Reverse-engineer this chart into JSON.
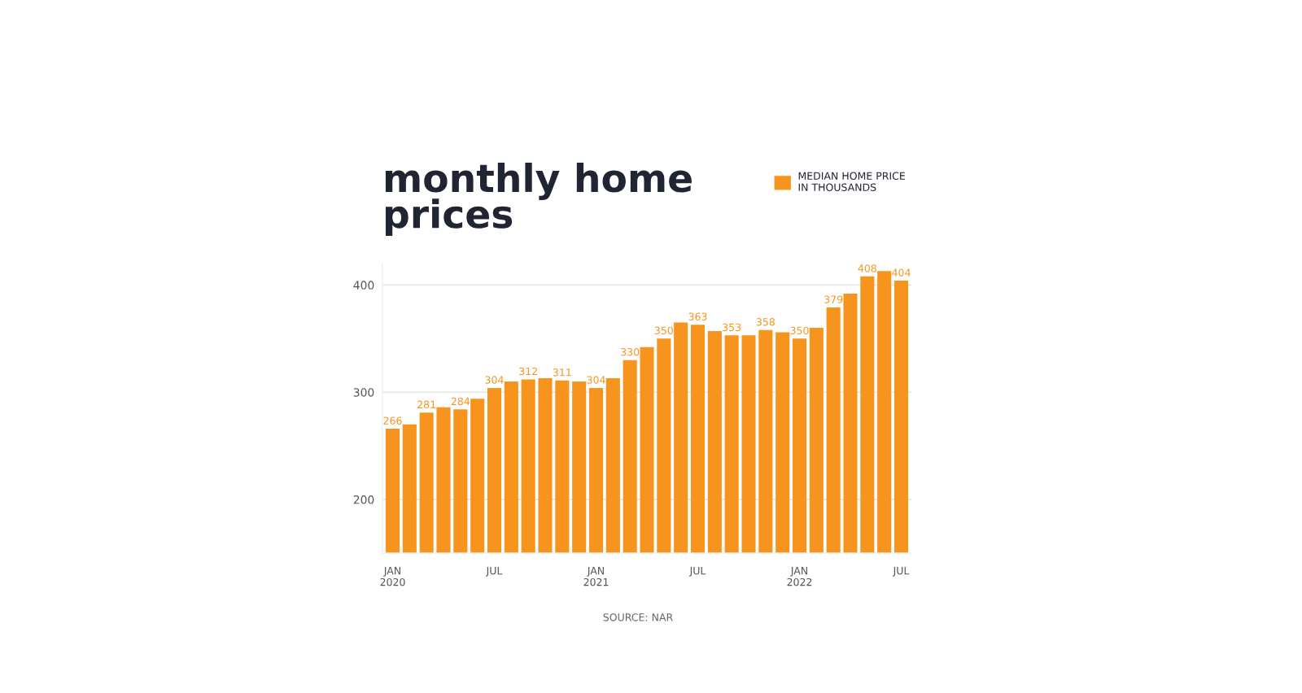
{
  "chart_data": {
    "type": "bar",
    "title": "monthly home\nprices",
    "categories": [
      "JAN\n2020",
      null,
      null,
      null,
      null,
      null,
      "JUL",
      null,
      null,
      null,
      null,
      null,
      "JAN\n2021",
      null,
      null,
      null,
      null,
      null,
      "JUL",
      null,
      null,
      null,
      null,
      null,
      "JAN\n2022",
      null,
      null,
      null,
      null,
      null,
      "JUL"
    ],
    "series": [
      {
        "name": "MEDIAN HOME PRICE\nIN THOUSANDS",
        "color": "#f7941d",
        "values": [
          266,
          270,
          281,
          286,
          284,
          294,
          304,
          310,
          312,
          313,
          311,
          310,
          304,
          313,
          330,
          342,
          350,
          365,
          363,
          357,
          353,
          353,
          358,
          356,
          350,
          360,
          379,
          392,
          408,
          413,
          404
        ],
        "value_labels": [
          "266",
          null,
          "281",
          null,
          "284",
          null,
          "304",
          null,
          "312",
          null,
          "311",
          null,
          "304",
          null,
          "330",
          null,
          "350",
          null,
          "363",
          null,
          "353",
          null,
          "358",
          null,
          "350",
          null,
          "379",
          null,
          "408",
          null,
          "404"
        ]
      }
    ],
    "ylim": [
      150,
      420
    ],
    "yticks": [
      200,
      300,
      400
    ],
    "grid": "y",
    "legend": "top right",
    "annotations": [
      "SOURCE: NAR"
    ]
  }
}
